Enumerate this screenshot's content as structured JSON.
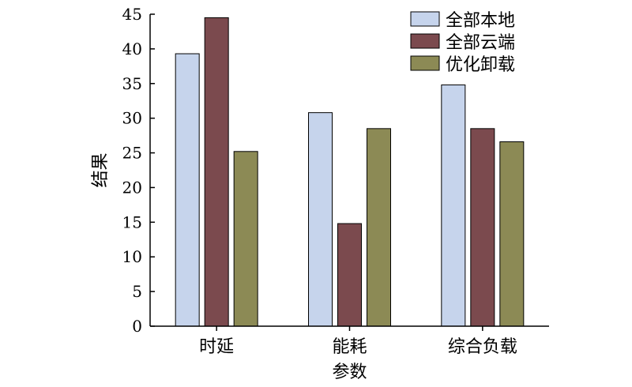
{
  "chart_data": {
    "type": "bar",
    "title": "",
    "xlabel": "参数",
    "ylabel": "结果",
    "ylim": [
      0,
      45
    ],
    "yticks": [
      0,
      5,
      10,
      15,
      20,
      25,
      30,
      35,
      40,
      45
    ],
    "categories": [
      "时延",
      "能耗",
      "综合负载"
    ],
    "series": [
      {
        "name": "全部本地",
        "values": [
          39.3,
          30.8,
          34.8
        ],
        "color": "#c6d4ec"
      },
      {
        "name": "全部云端",
        "values": [
          44.5,
          14.8,
          28.5
        ],
        "color": "#7b4a4e"
      },
      {
        "name": "优化卸载",
        "values": [
          25.2,
          28.5,
          26.6
        ],
        "color": "#8c8a55"
      }
    ],
    "legend_position": "top-right",
    "grid": false
  }
}
